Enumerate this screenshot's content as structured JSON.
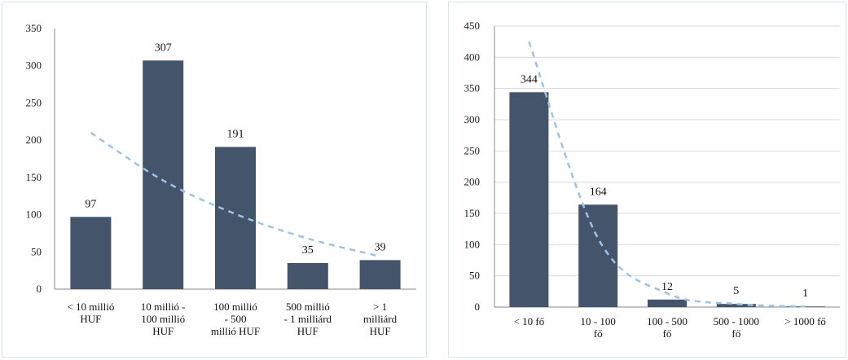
{
  "colors": {
    "bar": "#44546a",
    "trend": "#9dc3e6",
    "axis": "#888888",
    "grid": "#d9d9d9"
  },
  "chart_data": [
    {
      "type": "bar",
      "categories": [
        [
          "< 10 millió",
          "HUF"
        ],
        [
          "10 millió -",
          "100 millió",
          "HUF"
        ],
        [
          "100 millió",
          "- 500",
          "millió HUF"
        ],
        [
          "500 millió",
          "- 1 milliárd",
          "HUF"
        ],
        [
          "> 1",
          "milliárd",
          "HUF"
        ]
      ],
      "values": [
        97,
        307,
        191,
        35,
        39
      ],
      "data_labels": [
        "97",
        "307",
        "191",
        "35",
        "39"
      ],
      "ylim": [
        0,
        350
      ],
      "yticks": [
        0,
        50,
        100,
        150,
        200,
        250,
        300,
        350
      ],
      "grid": false,
      "trendline": {
        "type": "exponential",
        "style": "dashed",
        "values": [
          210,
          146,
          101,
          68,
          44
        ]
      }
    },
    {
      "type": "bar",
      "categories": [
        [
          "< 10 fő"
        ],
        [
          "10 - 100",
          "fő"
        ],
        [
          "100 - 500",
          "fő"
        ],
        [
          "500 - 1000",
          "fő"
        ],
        [
          "> 1000 fő"
        ]
      ],
      "values": [
        344,
        164,
        12,
        5,
        1
      ],
      "data_labels": [
        "344",
        "164",
        "12",
        "5",
        "1"
      ],
      "ylim": [
        0,
        450
      ],
      "yticks": [
        0,
        50,
        100,
        150,
        200,
        250,
        300,
        350,
        400,
        450
      ],
      "grid": true,
      "trendline": {
        "type": "power",
        "style": "dashed",
        "values": [
          425,
          110,
          22,
          5,
          1
        ]
      }
    }
  ]
}
